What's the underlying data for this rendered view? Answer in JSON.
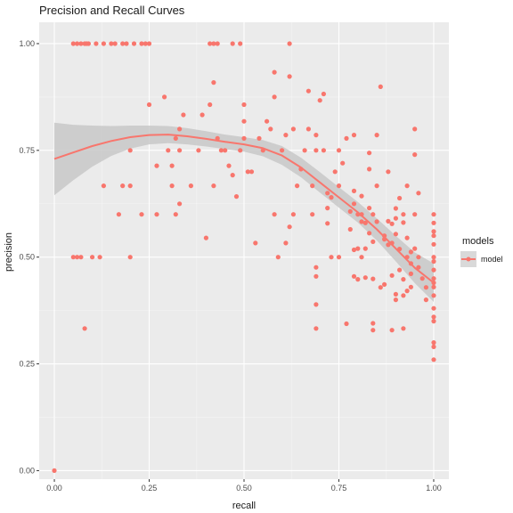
{
  "chart_data": {
    "type": "scatter",
    "title": "Precision and Recall Curves",
    "xlabel": "recall",
    "ylabel": "precision",
    "xlim": [
      -0.04,
      1.04
    ],
    "ylim": [
      -0.02,
      1.05
    ],
    "xticks": [
      0.0,
      0.25,
      0.5,
      0.75,
      1.0
    ],
    "xtick_labels": [
      "0.00",
      "0.25",
      "0.50",
      "0.75",
      "1.00"
    ],
    "yticks": [
      0.0,
      0.25,
      0.5,
      0.75,
      1.0
    ],
    "ytick_labels": [
      "0.00",
      "0.25",
      "0.50",
      "0.75",
      "1.00"
    ],
    "grid": true,
    "legend": {
      "title": "models",
      "placement": "right",
      "entries": [
        "model"
      ]
    },
    "colors": {
      "series": "#f8766d",
      "panel": "#ebebeb",
      "ribbon": "#c8c8c8",
      "grid": "#ffffff"
    },
    "series": [
      {
        "name": "model",
        "points": [
          [
            0.0,
            0.0
          ],
          [
            0.05,
            1.0
          ],
          [
            0.06,
            1.0
          ],
          [
            0.07,
            1.0
          ],
          [
            0.08,
            1.0
          ],
          [
            0.085,
            1.0
          ],
          [
            0.09,
            1.0
          ],
          [
            0.11,
            1.0
          ],
          [
            0.13,
            1.0
          ],
          [
            0.15,
            1.0
          ],
          [
            0.16,
            1.0
          ],
          [
            0.18,
            1.0
          ],
          [
            0.19,
            1.0
          ],
          [
            0.21,
            1.0
          ],
          [
            0.23,
            1.0
          ],
          [
            0.24,
            1.0
          ],
          [
            0.25,
            1.0
          ],
          [
            0.41,
            1.0
          ],
          [
            0.42,
            1.0
          ],
          [
            0.43,
            1.0
          ],
          [
            0.47,
            1.0
          ],
          [
            0.49,
            1.0
          ],
          [
            0.62,
            1.0
          ],
          [
            0.05,
            0.5
          ],
          [
            0.06,
            0.5
          ],
          [
            0.07,
            0.5
          ],
          [
            0.1,
            0.5
          ],
          [
            0.12,
            0.5
          ],
          [
            0.2,
            0.5
          ],
          [
            0.08,
            0.333
          ],
          [
            0.13,
            0.667
          ],
          [
            0.17,
            0.6
          ],
          [
            0.18,
            0.667
          ],
          [
            0.2,
            0.667
          ],
          [
            0.2,
            0.75
          ],
          [
            0.23,
            0.6
          ],
          [
            0.25,
            0.857
          ],
          [
            0.27,
            0.6
          ],
          [
            0.27,
            0.714
          ],
          [
            0.29,
            0.875
          ],
          [
            0.3,
            0.75
          ],
          [
            0.31,
            0.714
          ],
          [
            0.31,
            0.667
          ],
          [
            0.32,
            0.6
          ],
          [
            0.32,
            0.778
          ],
          [
            0.33,
            0.8
          ],
          [
            0.33,
            0.75
          ],
          [
            0.33,
            0.625
          ],
          [
            0.34,
            0.833
          ],
          [
            0.36,
            0.667
          ],
          [
            0.38,
            0.75
          ],
          [
            0.39,
            0.833
          ],
          [
            0.4,
            0.545
          ],
          [
            0.41,
            0.857
          ],
          [
            0.42,
            0.909
          ],
          [
            0.42,
            0.667
          ],
          [
            0.43,
            0.778
          ],
          [
            0.44,
            0.75
          ],
          [
            0.45,
            0.75
          ],
          [
            0.46,
            0.714
          ],
          [
            0.47,
            0.692
          ],
          [
            0.48,
            0.642
          ],
          [
            0.49,
            0.75
          ],
          [
            0.5,
            0.778
          ],
          [
            0.5,
            0.857
          ],
          [
            0.5,
            0.818
          ],
          [
            0.51,
            0.7
          ],
          [
            0.52,
            0.7
          ],
          [
            0.53,
            0.533
          ],
          [
            0.54,
            0.778
          ],
          [
            0.55,
            0.75
          ],
          [
            0.56,
            0.818
          ],
          [
            0.57,
            0.8
          ],
          [
            0.58,
            0.6
          ],
          [
            0.58,
            0.875
          ],
          [
            0.58,
            0.933
          ],
          [
            0.59,
            0.5
          ],
          [
            0.6,
            0.75
          ],
          [
            0.61,
            0.786
          ],
          [
            0.61,
            0.533
          ],
          [
            0.62,
            0.571
          ],
          [
            0.62,
            0.923
          ],
          [
            0.63,
            0.8
          ],
          [
            0.63,
            0.6
          ],
          [
            0.64,
            0.667
          ],
          [
            0.65,
            0.706
          ],
          [
            0.66,
            0.75
          ],
          [
            0.67,
            0.889
          ],
          [
            0.67,
            0.8
          ],
          [
            0.68,
            0.667
          ],
          [
            0.68,
            0.6
          ],
          [
            0.69,
            0.786
          ],
          [
            0.69,
            0.75
          ],
          [
            0.69,
            0.476
          ],
          [
            0.69,
            0.455
          ],
          [
            0.69,
            0.389
          ],
          [
            0.69,
            0.333
          ],
          [
            0.7,
            0.867
          ],
          [
            0.71,
            0.882
          ],
          [
            0.71,
            0.75
          ],
          [
            0.72,
            0.65
          ],
          [
            0.72,
            0.615
          ],
          [
            0.72,
            0.579
          ],
          [
            0.73,
            0.64
          ],
          [
            0.73,
            0.5
          ],
          [
            0.74,
            0.7
          ],
          [
            0.75,
            0.667
          ],
          [
            0.75,
            0.75
          ],
          [
            0.75,
            0.5
          ],
          [
            0.76,
            0.72
          ],
          [
            0.77,
            0.778
          ],
          [
            0.77,
            0.344
          ],
          [
            0.78,
            0.607
          ],
          [
            0.78,
            0.565
          ],
          [
            0.79,
            0.655
          ],
          [
            0.79,
            0.625
          ],
          [
            0.79,
            0.786
          ],
          [
            0.79,
            0.517
          ],
          [
            0.79,
            0.455
          ],
          [
            0.8,
            0.6
          ],
          [
            0.8,
            0.52
          ],
          [
            0.8,
            0.448
          ],
          [
            0.81,
            0.643
          ],
          [
            0.81,
            0.6
          ],
          [
            0.81,
            0.583
          ],
          [
            0.81,
            0.5
          ],
          [
            0.82,
            0.58
          ],
          [
            0.82,
            0.52
          ],
          [
            0.82,
            0.452
          ],
          [
            0.83,
            0.744
          ],
          [
            0.83,
            0.706
          ],
          [
            0.83,
            0.615
          ],
          [
            0.83,
            0.556
          ],
          [
            0.84,
            0.6
          ],
          [
            0.84,
            0.536
          ],
          [
            0.84,
            0.449
          ],
          [
            0.84,
            0.345
          ],
          [
            0.84,
            0.329
          ],
          [
            0.85,
            0.667
          ],
          [
            0.85,
            0.583
          ],
          [
            0.85,
            0.786
          ],
          [
            0.86,
            0.899
          ],
          [
            0.86,
            0.429
          ],
          [
            0.87,
            0.55
          ],
          [
            0.87,
            0.542
          ],
          [
            0.87,
            0.436
          ],
          [
            0.88,
            0.7
          ],
          [
            0.88,
            0.584
          ],
          [
            0.88,
            0.529
          ],
          [
            0.89,
            0.578
          ],
          [
            0.89,
            0.533
          ],
          [
            0.89,
            0.457
          ],
          [
            0.89,
            0.329
          ],
          [
            0.9,
            0.614
          ],
          [
            0.9,
            0.591
          ],
          [
            0.9,
            0.554
          ],
          [
            0.9,
            0.413
          ],
          [
            0.9,
            0.4
          ],
          [
            0.91,
            0.638
          ],
          [
            0.91,
            0.519
          ],
          [
            0.91,
            0.47
          ],
          [
            0.92,
            0.6
          ],
          [
            0.92,
            0.581
          ],
          [
            0.92,
            0.448
          ],
          [
            0.92,
            0.41
          ],
          [
            0.92,
            0.333
          ],
          [
            0.93,
            0.667
          ],
          [
            0.93,
            0.545
          ],
          [
            0.93,
            0.5
          ],
          [
            0.93,
            0.421
          ],
          [
            0.94,
            0.512
          ],
          [
            0.94,
            0.485
          ],
          [
            0.94,
            0.461
          ],
          [
            0.94,
            0.43
          ],
          [
            0.95,
            0.8
          ],
          [
            0.95,
            0.74
          ],
          [
            0.95,
            0.6
          ],
          [
            0.95,
            0.52
          ],
          [
            0.96,
            0.65
          ],
          [
            0.96,
            0.5
          ],
          [
            0.96,
            0.476
          ],
          [
            0.97,
            0.45
          ],
          [
            0.98,
            0.4
          ],
          [
            0.98,
            0.429
          ],
          [
            1.0,
            0.6
          ],
          [
            1.0,
            0.58
          ],
          [
            1.0,
            0.56
          ],
          [
            1.0,
            0.55
          ],
          [
            1.0,
            0.53
          ],
          [
            1.0,
            0.5
          ],
          [
            1.0,
            0.49
          ],
          [
            1.0,
            0.47
          ],
          [
            1.0,
            0.45
          ],
          [
            1.0,
            0.44
          ],
          [
            1.0,
            0.43
          ],
          [
            1.0,
            0.41
          ],
          [
            1.0,
            0.38
          ],
          [
            1.0,
            0.36
          ],
          [
            1.0,
            0.35
          ],
          [
            1.0,
            0.3
          ],
          [
            1.0,
            0.29
          ],
          [
            1.0,
            0.26
          ]
        ],
        "smooth": [
          [
            0.0,
            0.73
          ],
          [
            0.05,
            0.745
          ],
          [
            0.1,
            0.76
          ],
          [
            0.15,
            0.772
          ],
          [
            0.2,
            0.781
          ],
          [
            0.25,
            0.786
          ],
          [
            0.3,
            0.787
          ],
          [
            0.35,
            0.783
          ],
          [
            0.4,
            0.777
          ],
          [
            0.45,
            0.77
          ],
          [
            0.5,
            0.764
          ],
          [
            0.55,
            0.755
          ],
          [
            0.6,
            0.738
          ],
          [
            0.65,
            0.71
          ],
          [
            0.7,
            0.675
          ],
          [
            0.75,
            0.64
          ],
          [
            0.8,
            0.605
          ],
          [
            0.85,
            0.565
          ],
          [
            0.9,
            0.52
          ],
          [
            0.95,
            0.475
          ],
          [
            1.0,
            0.44
          ]
        ],
        "ribbon_halfwidth": [
          [
            0.0,
            0.085
          ],
          [
            0.05,
            0.065
          ],
          [
            0.1,
            0.048
          ],
          [
            0.15,
            0.035
          ],
          [
            0.2,
            0.027
          ],
          [
            0.25,
            0.022
          ],
          [
            0.3,
            0.02
          ],
          [
            0.35,
            0.019
          ],
          [
            0.4,
            0.018
          ],
          [
            0.45,
            0.017
          ],
          [
            0.5,
            0.017
          ],
          [
            0.55,
            0.019
          ],
          [
            0.6,
            0.022
          ],
          [
            0.65,
            0.023
          ],
          [
            0.7,
            0.024
          ],
          [
            0.75,
            0.024
          ],
          [
            0.8,
            0.024
          ],
          [
            0.85,
            0.026
          ],
          [
            0.9,
            0.03
          ],
          [
            0.95,
            0.036
          ],
          [
            1.0,
            0.045
          ]
        ]
      }
    ]
  }
}
